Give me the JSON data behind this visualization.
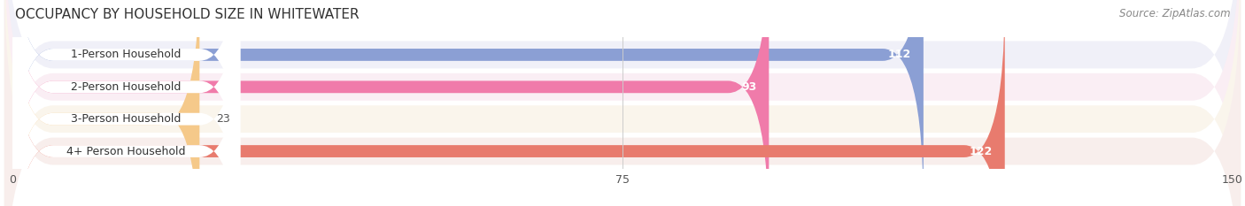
{
  "title": "OCCUPANCY BY HOUSEHOLD SIZE IN WHITEWATER",
  "source": "Source: ZipAtlas.com",
  "categories": [
    "1-Person Household",
    "2-Person Household",
    "3-Person Household",
    "4+ Person Household"
  ],
  "values": [
    112,
    93,
    23,
    122
  ],
  "bar_colors": [
    "#8b9fd4",
    "#f07baa",
    "#f5c98a",
    "#e87b6e"
  ],
  "bar_bg_colors": [
    "#e8eaf5",
    "#fce8f0",
    "#fdf0e0",
    "#faeae8"
  ],
  "xlim": [
    0,
    150
  ],
  "xticks": [
    0,
    75,
    150
  ],
  "title_fontsize": 11,
  "source_fontsize": 8.5,
  "label_fontsize": 9,
  "value_fontsize": 9,
  "bar_height": 0.38,
  "background_color": "#ffffff",
  "row_bg_colors": [
    "#f0f0f8",
    "#faeef4",
    "#faf5ec",
    "#f8eeec"
  ]
}
